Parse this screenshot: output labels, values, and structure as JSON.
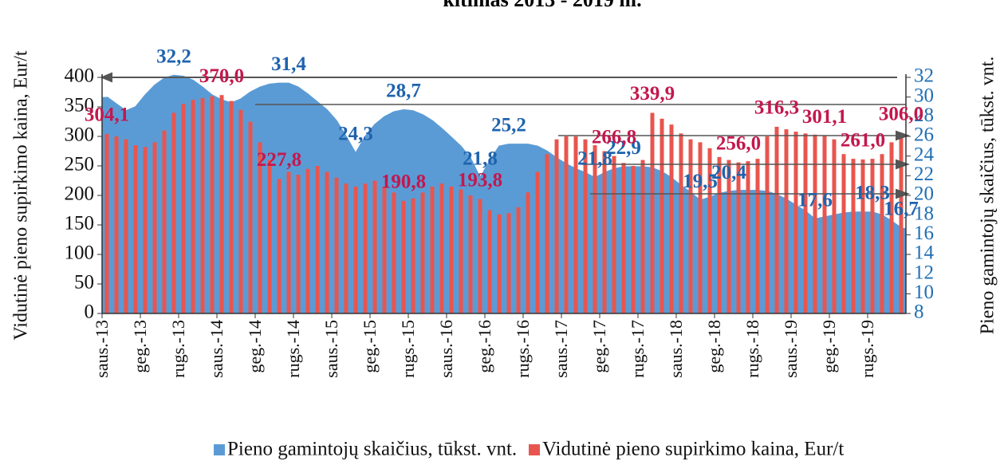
{
  "chart_data": {
    "type": "bar_area",
    "title": "kitimas 2013 - 2019 m.",
    "y_label": "Vidutinė pieno supirkimo kaina, Eur/t",
    "y2_label": "Pieno gamintojų skaičius, tūkst. vnt.",
    "categories": [
      "saus.-13",
      null,
      null,
      null,
      "geg.-13",
      null,
      null,
      null,
      "rugs.-13",
      null,
      null,
      null,
      "saus.-14",
      null,
      null,
      null,
      "geg.-14",
      null,
      null,
      null,
      "rugs.-14",
      null,
      null,
      null,
      "saus.-15",
      null,
      null,
      null,
      "geg.-15",
      null,
      null,
      null,
      "rugs.-15",
      null,
      null,
      null,
      "saus.-16",
      null,
      null,
      null,
      "geg.-16",
      null,
      null,
      null,
      "rugs.-16",
      null,
      null,
      null,
      "saus.-17",
      null,
      null,
      null,
      "geg.-17",
      null,
      null,
      null,
      "rugs.-17",
      null,
      null,
      null,
      "saus.-18",
      null,
      null,
      null,
      "geg.-18",
      null,
      null,
      null,
      "rugs.-18",
      null,
      null,
      null,
      "saus.-19",
      null,
      null,
      null,
      "geg.-19",
      null,
      null,
      null,
      "rugs.-19",
      null,
      null,
      null
    ],
    "series": [
      {
        "name": "Pieno gamintojų skaičius, tūkst. vnt.",
        "color": "#5b9bd5",
        "axis": "y2",
        "kind": "area",
        "values": [
          30.0,
          29.3,
          28.6,
          29.0,
          30.2,
          31.2,
          31.9,
          32.2,
          32.1,
          31.7,
          31.0,
          30.2,
          29.7,
          29.4,
          29.8,
          30.5,
          31.0,
          31.3,
          31.4,
          31.4,
          31.0,
          30.3,
          29.5,
          28.7,
          27.6,
          26.0,
          24.3,
          26.0,
          27.2,
          28.0,
          28.5,
          28.7,
          28.6,
          28.2,
          27.6,
          26.8,
          25.9,
          25.0,
          23.8,
          21.8,
          23.5,
          25.0,
          25.2,
          25.2,
          25.2,
          25.0,
          24.5,
          23.8,
          23.2,
          22.7,
          22.3,
          21.8,
          22.3,
          22.7,
          22.9,
          22.9,
          22.9,
          22.8,
          22.4,
          21.8,
          21.0,
          20.3,
          19.5,
          19.8,
          20.2,
          20.4,
          20.5,
          20.5,
          20.5,
          20.4,
          20.1,
          19.6,
          19.0,
          18.4,
          17.6,
          17.8,
          18.0,
          18.2,
          18.3,
          18.3,
          18.3,
          18.0,
          17.4,
          16.7
        ],
        "value_labels": [
          null,
          null,
          null,
          null,
          null,
          null,
          null,
          "32,2",
          null,
          null,
          null,
          null,
          null,
          null,
          null,
          null,
          null,
          null,
          null,
          "31,4",
          null,
          null,
          null,
          null,
          null,
          null,
          "24,3",
          null,
          null,
          null,
          null,
          "28,7",
          null,
          null,
          null,
          null,
          null,
          null,
          null,
          "21,8",
          null,
          null,
          "25,2",
          null,
          null,
          null,
          null,
          null,
          null,
          null,
          null,
          "21,8",
          null,
          null,
          "22,9",
          null,
          null,
          null,
          null,
          null,
          null,
          null,
          "19,5",
          null,
          null,
          "20,4",
          null,
          null,
          null,
          null,
          null,
          null,
          null,
          null,
          "17,6",
          null,
          null,
          null,
          null,
          null,
          "18,3",
          null,
          null,
          "16,7"
        ]
      },
      {
        "name": "Vidutinė pieno supirkimo kaina, Eur/t",
        "color": "#e8554e",
        "axis": "y",
        "kind": "bar",
        "values": [
          304.1,
          300,
          295,
          285,
          282,
          290,
          310,
          340,
          355,
          362,
          365,
          368,
          370.0,
          360,
          345,
          325,
          290,
          260,
          227.8,
          240,
          235,
          245,
          250,
          240,
          230,
          220,
          215,
          220,
          225,
          215,
          205,
          190.8,
          195,
          205,
          215,
          220,
          215,
          210,
          200,
          193.8,
          175,
          168,
          170,
          180,
          205,
          240,
          270,
          295,
          300,
          300,
          295,
          285,
          275,
          266.8,
          255,
          250,
          260,
          339.9,
          330,
          320,
          305,
          295,
          290,
          280,
          265,
          260,
          256.0,
          258,
          262,
          300,
          316.3,
          312,
          308,
          305,
          303,
          301.1,
          295,
          270,
          262,
          261.0,
          262,
          270,
          290,
          306.0
        ],
        "value_labels": [
          "304,1",
          null,
          null,
          null,
          null,
          null,
          null,
          null,
          null,
          null,
          null,
          null,
          "370,0",
          null,
          null,
          null,
          null,
          null,
          "227,8",
          null,
          null,
          null,
          null,
          null,
          null,
          null,
          null,
          null,
          null,
          null,
          null,
          "190,8",
          null,
          null,
          null,
          null,
          null,
          null,
          null,
          "193,8",
          null,
          null,
          null,
          null,
          null,
          null,
          null,
          null,
          null,
          null,
          null,
          null,
          null,
          "266,8",
          null,
          null,
          null,
          "339,9",
          null,
          null,
          null,
          null,
          null,
          null,
          null,
          null,
          "256,0",
          null,
          null,
          null,
          "316,3",
          null,
          null,
          null,
          null,
          "301,1",
          null,
          null,
          null,
          "261,0",
          null,
          null,
          null,
          "306,0"
        ]
      }
    ],
    "ylim": [
      0,
      400
    ],
    "yticks": [
      0,
      50,
      100,
      150,
      200,
      250,
      300,
      350,
      400
    ],
    "y2lim": [
      8,
      32
    ],
    "y2ticks": [
      8,
      10,
      12,
      14,
      16,
      18,
      20,
      22,
      24,
      26,
      28,
      30,
      32
    ],
    "legend": "bottom"
  }
}
